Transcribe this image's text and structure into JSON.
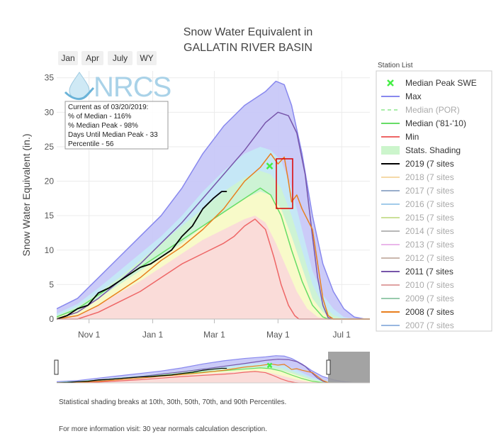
{
  "chart_data": {
    "type": "line",
    "title": "Snow Water Equivalent in",
    "subtitle": "GALLATIN RIVER BASIN",
    "ylabel": "Snow Water Equivalent (in.)",
    "xlabel": "",
    "ylim": [
      0,
      36
    ],
    "y_ticks": [
      0,
      5,
      10,
      15,
      20,
      25,
      30,
      35
    ],
    "x_ticks": [
      "Nov 1",
      "Jan 1",
      "Mar 1",
      "May 1",
      "Jul 1"
    ],
    "x_tick_days": [
      31,
      92,
      151,
      212,
      273
    ],
    "xlim_days": [
      0,
      300
    ],
    "grid": true,
    "zoom_buttons": [
      "Jan",
      "Apr",
      "July",
      "WY"
    ],
    "logo_text": "NRCS",
    "info_box": [
      "Current as of 03/20/2019:",
      "% of Median - 116%",
      "% Median Peak - 98%",
      "Days Until Median Peak - 33",
      "Percentile - 56"
    ],
    "legend_title": "Station List",
    "legend_placement": "right",
    "legend": [
      {
        "label": "Median Peak SWE",
        "color": "#44ee44",
        "style": "x-marker",
        "faded": false
      },
      {
        "label": "Max",
        "color": "#8888ee",
        "style": "line",
        "faded": false
      },
      {
        "label": "Median (POR)",
        "color": "#aaeeaa",
        "style": "dash",
        "faded": true
      },
      {
        "label": "Median ('81-'10)",
        "color": "#66dd66",
        "style": "line",
        "faded": false
      },
      {
        "label": "Min",
        "color": "#ee6666",
        "style": "line",
        "faded": false
      },
      {
        "label": "Stats. Shading",
        "color": "#ccf5cc",
        "style": "box",
        "faded": false
      },
      {
        "label": "2019 (7 sites",
        "color": "#000000",
        "style": "line",
        "faded": false
      },
      {
        "label": "2018 (7 sites",
        "color": "#f0c070",
        "style": "line",
        "faded": true
      },
      {
        "label": "2017 (7 sites",
        "color": "#5577aa",
        "style": "line",
        "faded": true
      },
      {
        "label": "2016 (7 sites",
        "color": "#66aadd",
        "style": "line",
        "faded": true
      },
      {
        "label": "2015 (7 sites",
        "color": "#aacc55",
        "style": "line",
        "faded": true
      },
      {
        "label": "2014 (7 sites",
        "color": "#888888",
        "style": "line",
        "faded": true
      },
      {
        "label": "2013 (7 sites",
        "color": "#dd88dd",
        "style": "line",
        "faded": true
      },
      {
        "label": "2012 (7 sites",
        "color": "#aa8877",
        "style": "line",
        "faded": true
      },
      {
        "label": "2011 (7 sites",
        "color": "#7755aa",
        "style": "line",
        "faded": false
      },
      {
        "label": "2010 (7 sites",
        "color": "#cc6666",
        "style": "line",
        "faded": true
      },
      {
        "label": "2009 (7 sites",
        "color": "#55aa77",
        "style": "line",
        "faded": true
      },
      {
        "label": "2008 (7 sites",
        "color": "#e87f1e",
        "style": "line",
        "faded": false
      },
      {
        "label": "2007 (7 sites",
        "color": "#5588cc",
        "style": "line",
        "faded": true
      }
    ],
    "shading_bands": [
      {
        "name": "90-max",
        "color": "#c8c8f8",
        "values": [
          [
            0,
            1.5
          ],
          [
            20,
            3
          ],
          [
            40,
            6
          ],
          [
            60,
            9
          ],
          [
            80,
            12
          ],
          [
            100,
            15
          ],
          [
            120,
            19
          ],
          [
            140,
            24
          ],
          [
            160,
            28
          ],
          [
            180,
            31
          ],
          [
            200,
            33
          ],
          [
            210,
            34.5
          ],
          [
            218,
            34
          ],
          [
            225,
            31
          ],
          [
            235,
            24
          ],
          [
            245,
            15
          ],
          [
            255,
            8
          ],
          [
            265,
            4
          ],
          [
            275,
            1.5
          ],
          [
            285,
            0.3
          ],
          [
            295,
            0
          ]
        ]
      },
      {
        "name": "70-90",
        "color": "#c4e8f5",
        "values": [
          [
            0,
            0.8
          ],
          [
            20,
            2.2
          ],
          [
            40,
            4.5
          ],
          [
            60,
            7
          ],
          [
            80,
            9.5
          ],
          [
            100,
            12
          ],
          [
            120,
            15
          ],
          [
            140,
            18.5
          ],
          [
            160,
            21.5
          ],
          [
            180,
            24
          ],
          [
            195,
            25
          ],
          [
            205,
            24.5
          ],
          [
            215,
            23
          ],
          [
            225,
            19
          ],
          [
            235,
            13
          ],
          [
            245,
            7
          ],
          [
            255,
            3.5
          ],
          [
            265,
            1.5
          ],
          [
            275,
            0.3
          ],
          [
            285,
            0
          ]
        ]
      },
      {
        "name": "50-70",
        "color": "#cdf3d2",
        "values": [
          [
            0,
            0.5
          ],
          [
            20,
            1.8
          ],
          [
            40,
            3.8
          ],
          [
            60,
            6
          ],
          [
            80,
            8.5
          ],
          [
            100,
            11
          ],
          [
            120,
            13.5
          ],
          [
            140,
            16
          ],
          [
            160,
            18.5
          ],
          [
            180,
            20.5
          ],
          [
            195,
            21.5
          ],
          [
            205,
            21
          ],
          [
            215,
            19
          ],
          [
            225,
            15
          ],
          [
            235,
            10
          ],
          [
            245,
            5
          ],
          [
            255,
            2
          ],
          [
            265,
            0.6
          ],
          [
            275,
            0
          ]
        ]
      },
      {
        "name": "30-50",
        "color": "#fafac8",
        "values": [
          [
            0,
            0.3
          ],
          [
            20,
            1.2
          ],
          [
            40,
            3
          ],
          [
            60,
            5
          ],
          [
            80,
            7
          ],
          [
            100,
            9
          ],
          [
            120,
            11
          ],
          [
            140,
            13.5
          ],
          [
            160,
            15.5
          ],
          [
            180,
            17.5
          ],
          [
            195,
            18.5
          ],
          [
            205,
            18
          ],
          [
            215,
            16
          ],
          [
            225,
            12
          ],
          [
            235,
            7.5
          ],
          [
            245,
            3
          ],
          [
            255,
            1
          ],
          [
            265,
            0
          ]
        ]
      },
      {
        "name": "10-30",
        "color": "#fadada",
        "values": [
          [
            0,
            0.1
          ],
          [
            20,
            0.6
          ],
          [
            40,
            2
          ],
          [
            60,
            3.8
          ],
          [
            80,
            5.5
          ],
          [
            100,
            7.5
          ],
          [
            120,
            9.5
          ],
          [
            140,
            11.5
          ],
          [
            160,
            13
          ],
          [
            180,
            14.5
          ],
          [
            190,
            15
          ],
          [
            200,
            14
          ],
          [
            210,
            11
          ],
          [
            220,
            7.5
          ],
          [
            230,
            4
          ],
          [
            240,
            1.5
          ],
          [
            250,
            0.3
          ],
          [
            258,
            0
          ]
        ]
      }
    ],
    "series": [
      {
        "name": "Max",
        "color": "#8888ee",
        "width": 1.5,
        "values": [
          [
            0,
            1.5
          ],
          [
            20,
            3
          ],
          [
            40,
            6
          ],
          [
            60,
            9
          ],
          [
            80,
            12
          ],
          [
            100,
            15
          ],
          [
            120,
            19
          ],
          [
            140,
            24
          ],
          [
            160,
            28
          ],
          [
            180,
            31
          ],
          [
            200,
            33
          ],
          [
            210,
            34.5
          ],
          [
            218,
            34
          ],
          [
            225,
            31
          ],
          [
            235,
            24
          ],
          [
            245,
            15
          ],
          [
            255,
            8
          ],
          [
            265,
            4
          ],
          [
            275,
            1.5
          ],
          [
            285,
            0.3
          ],
          [
            295,
            0
          ],
          [
            300,
            0
          ]
        ]
      },
      {
        "name": "2011 (7 sites",
        "color": "#7755aa",
        "width": 1.5,
        "values": [
          [
            0,
            0
          ],
          [
            20,
            1
          ],
          [
            40,
            3
          ],
          [
            60,
            5.5
          ],
          [
            80,
            8
          ],
          [
            100,
            11
          ],
          [
            120,
            14
          ],
          [
            140,
            17.5
          ],
          [
            160,
            21
          ],
          [
            180,
            24.5
          ],
          [
            200,
            28.5
          ],
          [
            212,
            30
          ],
          [
            222,
            29.5
          ],
          [
            230,
            27
          ],
          [
            238,
            21
          ],
          [
            245,
            12
          ],
          [
            250,
            6
          ],
          [
            255,
            2
          ],
          [
            260,
            0.2
          ],
          [
            265,
            0
          ],
          [
            300,
            0
          ]
        ]
      },
      {
        "name": "Median ('81-'10)",
        "color": "#66dd66",
        "width": 1.5,
        "values": [
          [
            0,
            0.3
          ],
          [
            20,
            1.5
          ],
          [
            40,
            3.5
          ],
          [
            60,
            5.5
          ],
          [
            80,
            7.5
          ],
          [
            100,
            9.5
          ],
          [
            120,
            11.5
          ],
          [
            140,
            13.5
          ],
          [
            160,
            15.5
          ],
          [
            180,
            17.5
          ],
          [
            195,
            19
          ],
          [
            205,
            18
          ],
          [
            215,
            15
          ],
          [
            225,
            10
          ],
          [
            235,
            5.5
          ],
          [
            245,
            2
          ],
          [
            255,
            0.3
          ],
          [
            260,
            0
          ],
          [
            300,
            0
          ]
        ]
      },
      {
        "name": "Min",
        "color": "#ee6666",
        "width": 1.5,
        "values": [
          [
            0,
            0
          ],
          [
            20,
            0
          ],
          [
            40,
            1
          ],
          [
            60,
            2.5
          ],
          [
            80,
            4
          ],
          [
            100,
            6
          ],
          [
            120,
            8
          ],
          [
            140,
            9.5
          ],
          [
            160,
            11
          ],
          [
            170,
            12
          ],
          [
            180,
            13.5
          ],
          [
            190,
            14.5
          ],
          [
            200,
            13
          ],
          [
            208,
            9
          ],
          [
            215,
            5
          ],
          [
            222,
            2
          ],
          [
            228,
            0.5
          ],
          [
            232,
            0
          ],
          [
            300,
            0
          ]
        ]
      },
      {
        "name": "2008 (7 sites",
        "color": "#e87f1e",
        "width": 1.5,
        "values": [
          [
            0,
            0
          ],
          [
            20,
            0.5
          ],
          [
            40,
            2
          ],
          [
            60,
            4
          ],
          [
            80,
            6
          ],
          [
            100,
            8.5
          ],
          [
            120,
            10.5
          ],
          [
            140,
            13
          ],
          [
            160,
            16
          ],
          [
            180,
            20
          ],
          [
            195,
            22
          ],
          [
            205,
            24
          ],
          [
            212,
            22.5
          ],
          [
            218,
            23.5
          ],
          [
            222,
            20
          ],
          [
            225,
            17
          ],
          [
            230,
            18
          ],
          [
            235,
            16
          ],
          [
            240,
            14.5
          ],
          [
            245,
            13
          ],
          [
            250,
            8
          ],
          [
            255,
            3
          ],
          [
            260,
            0.5
          ],
          [
            265,
            0
          ],
          [
            300,
            0
          ]
        ]
      },
      {
        "name": "2019 (7 sites",
        "color": "#000000",
        "width": 1.8,
        "values": [
          [
            0,
            0
          ],
          [
            10,
            0.5
          ],
          [
            20,
            1.5
          ],
          [
            30,
            2
          ],
          [
            40,
            3.8
          ],
          [
            50,
            4.5
          ],
          [
            60,
            5.5
          ],
          [
            70,
            6.5
          ],
          [
            80,
            7.5
          ],
          [
            90,
            8
          ],
          [
            100,
            9
          ],
          [
            110,
            10
          ],
          [
            120,
            12
          ],
          [
            130,
            13.5
          ],
          [
            140,
            16
          ],
          [
            150,
            17.5
          ],
          [
            158,
            18.5
          ],
          [
            163,
            18.5
          ]
        ]
      }
    ],
    "median_peak": {
      "x": 204,
      "y": 22.2,
      "color": "#44ee44"
    }
  }
}
